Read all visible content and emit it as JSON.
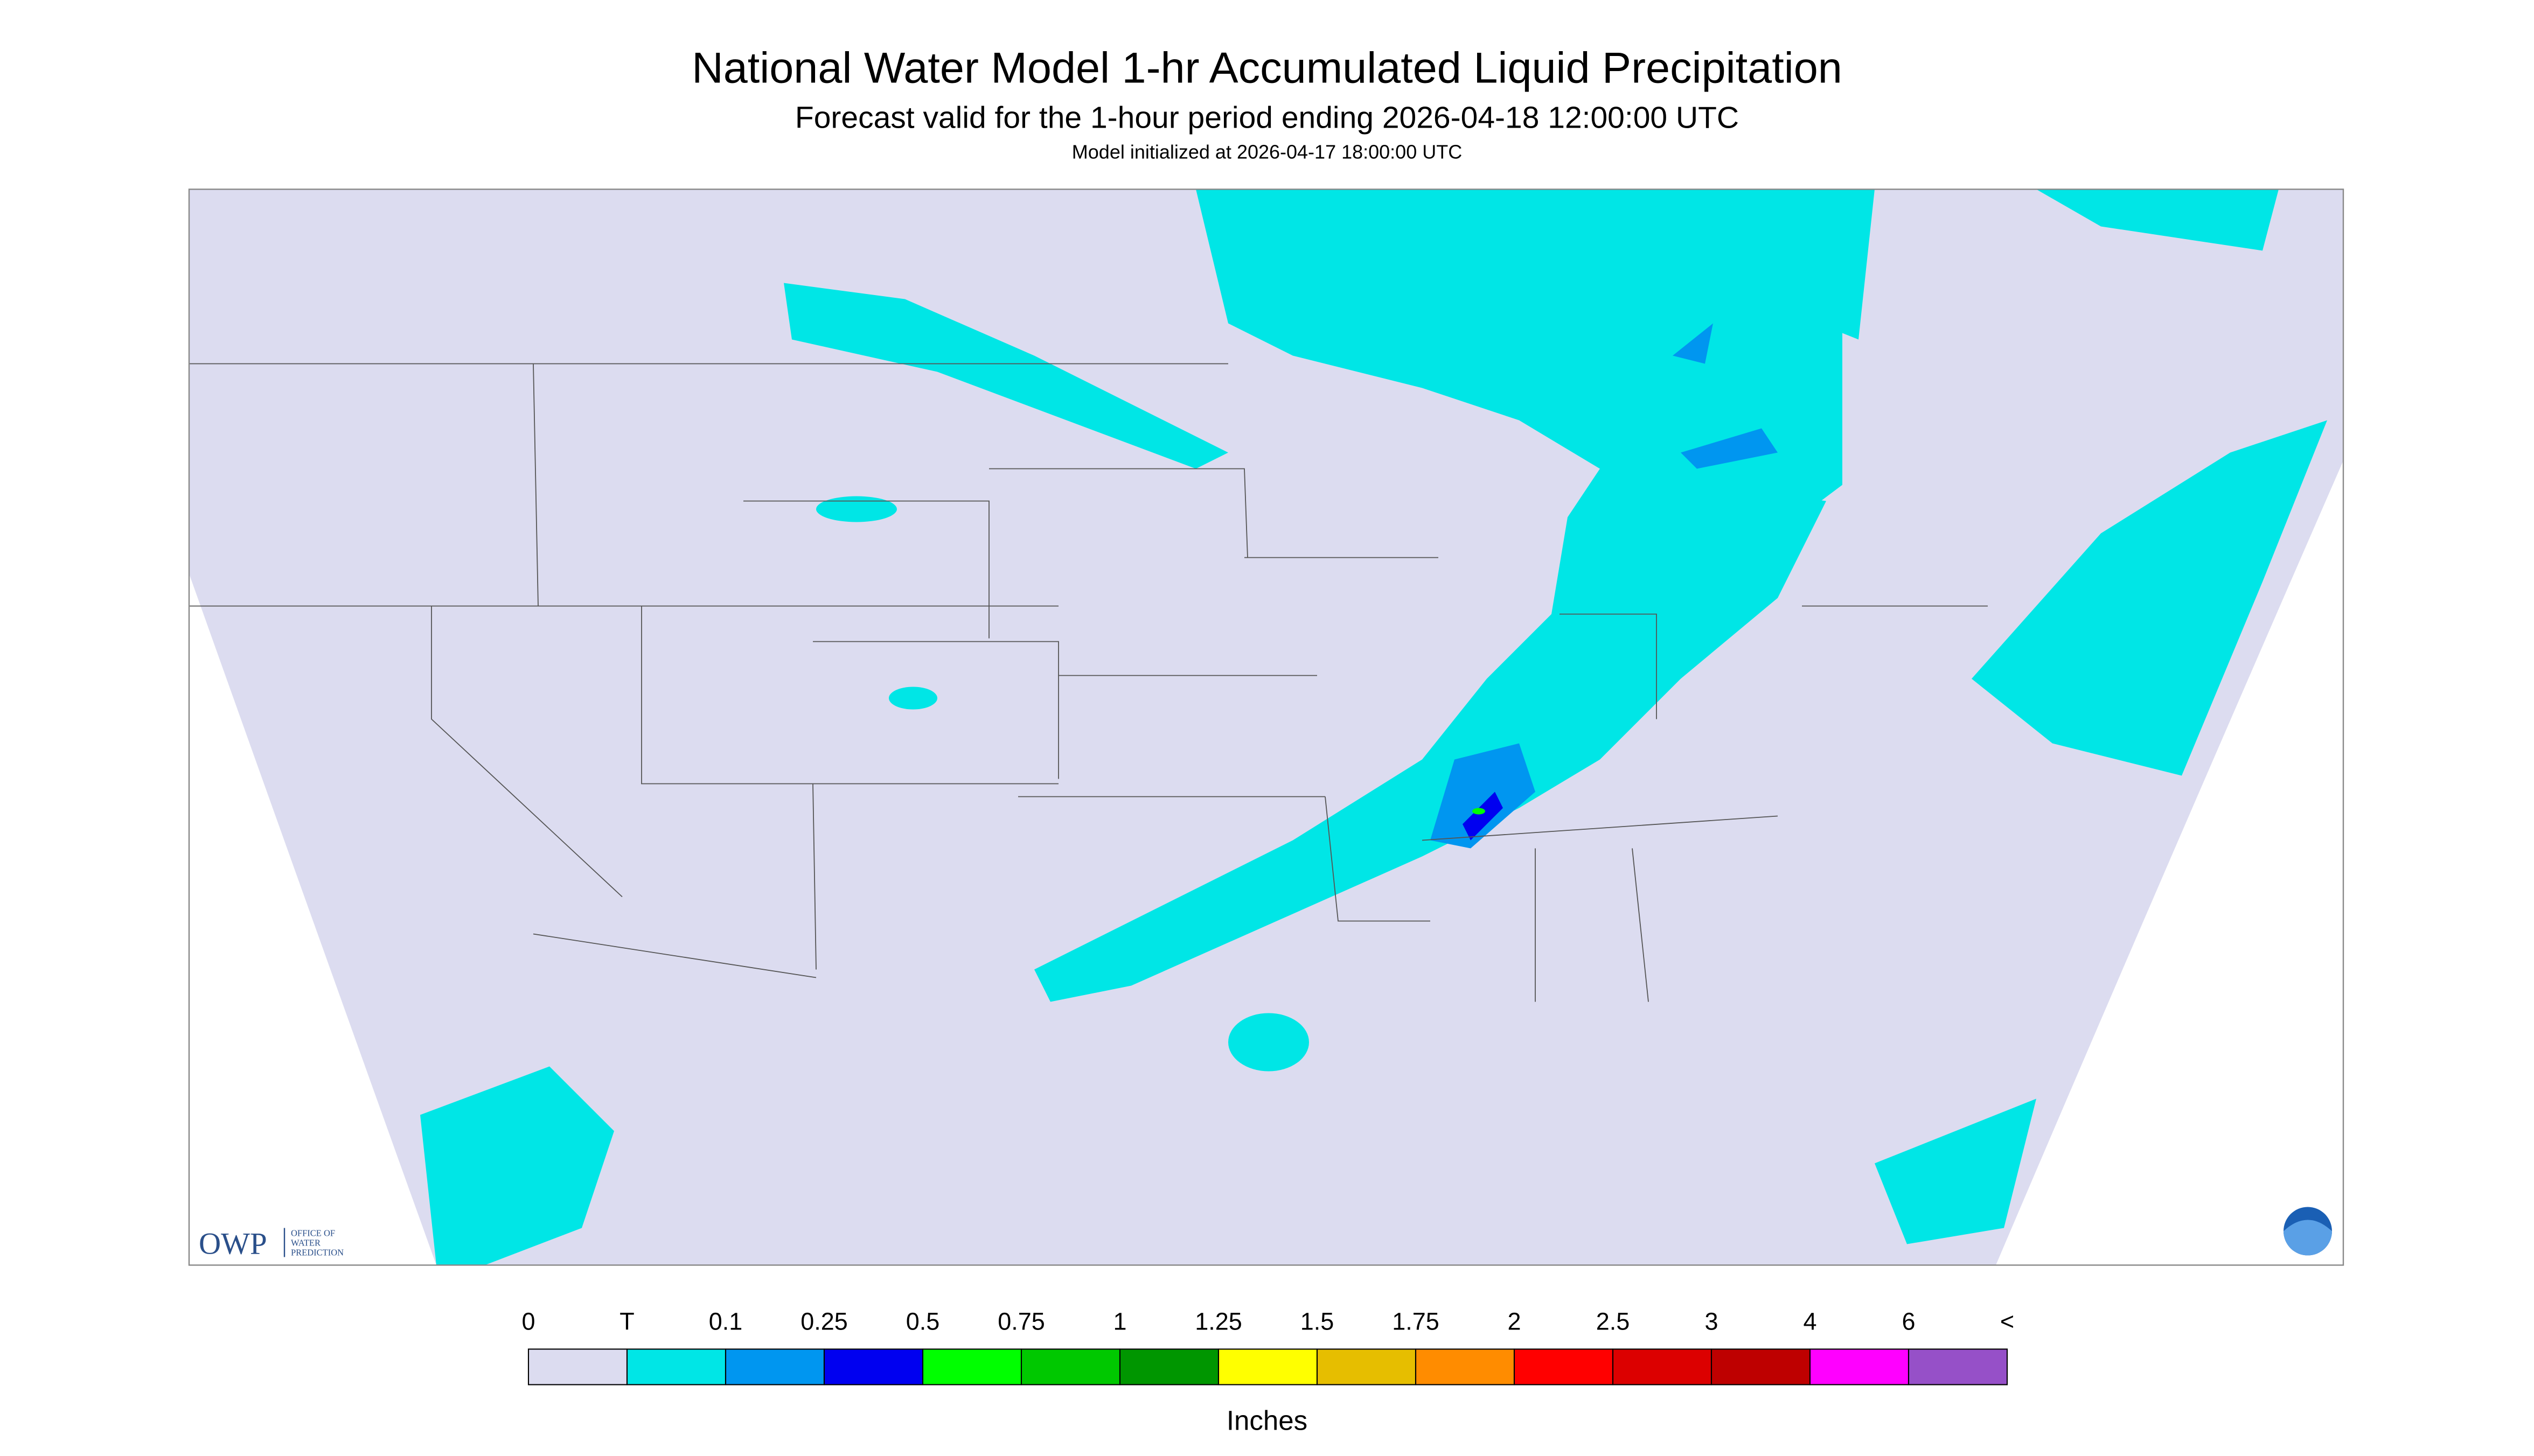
{
  "header": {
    "title": "National Water Model 1-hr Accumulated Liquid Precipitation",
    "subtitle": "Forecast valid for the 1-hour period ending 2026-04-18 12:00:00 UTC",
    "init": "Model initialized at 2026-04-17 18:00:00 UTC"
  },
  "legend": {
    "labels": [
      "0",
      "T",
      "0.1",
      "0.25",
      "0.5",
      "0.75",
      "1",
      "1.25",
      "1.5",
      "1.75",
      "2",
      "2.5",
      "3",
      "4",
      "6",
      "<"
    ],
    "colors": [
      "#dcdcf0",
      "#00e6e6",
      "#0096f0",
      "#0000f0",
      "#00ff00",
      "#00c800",
      "#009600",
      "#ffff00",
      "#e6be00",
      "#ff8c00",
      "#ff0000",
      "#dc0000",
      "#be0000",
      "#ff00ff",
      "#9650c8"
    ],
    "units": "Inches"
  },
  "logo": {
    "acronym": "OWP",
    "name_lines": [
      "OFFICE OF",
      "WATER",
      "PREDICTION"
    ]
  }
}
